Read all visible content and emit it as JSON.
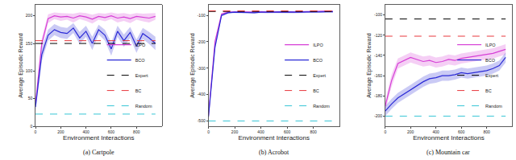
{
  "chart_data": [
    {
      "type": "line",
      "title": "(a) Cartpole",
      "x_label": "Environment Interactions",
      "y_label": "Average Episodic Reward",
      "x": [
        0,
        50,
        100,
        150,
        200,
        250,
        300,
        350,
        400,
        450,
        500,
        550,
        600,
        650,
        700,
        750,
        800,
        850,
        900,
        950
      ],
      "xlim": [
        0,
        1000
      ],
      "xticks": [
        0,
        200,
        400,
        600,
        800
      ],
      "ylim": [
        0,
        220
      ],
      "yticks": [
        0,
        50,
        100,
        150,
        200
      ],
      "grid": false,
      "legend": "right",
      "series": [
        {
          "name": "ILPO",
          "color": "#d63fd6",
          "line_style": "solid",
          "values": [
            40,
            150,
            195,
            200,
            198,
            199,
            196,
            200,
            198,
            194,
            199,
            197,
            200,
            196,
            198,
            195,
            199,
            197,
            196,
            199
          ],
          "error": [
            8,
            10,
            8,
            6,
            7,
            6,
            8,
            6,
            7,
            8,
            6,
            7,
            6,
            8,
            7,
            8,
            6,
            7,
            8,
            6
          ]
        },
        {
          "name": "BCO",
          "color": "#2b2bd6",
          "line_style": "solid",
          "values": [
            35,
            130,
            165,
            175,
            170,
            168,
            178,
            160,
            172,
            150,
            175,
            165,
            140,
            172,
            155,
            170,
            145,
            168,
            160,
            150
          ],
          "error": [
            8,
            12,
            10,
            10,
            10,
            10,
            9,
            11,
            10,
            12,
            9,
            10,
            12,
            10,
            11,
            10,
            12,
            10,
            11,
            12
          ]
        },
        {
          "name": "Expert",
          "color": "#000000",
          "line_style": "dashed",
          "values": [
            150,
            150,
            150,
            150,
            150,
            150,
            150,
            150,
            150,
            150,
            150,
            150,
            150,
            150,
            150,
            150,
            150,
            150,
            150,
            150
          ]
        },
        {
          "name": "BC",
          "color": "#e8383d",
          "line_style": "dashed",
          "values": [
            155,
            155,
            155,
            155,
            155,
            155,
            155,
            155,
            155,
            155,
            155,
            155,
            155,
            155,
            155,
            155,
            155,
            155,
            155,
            155
          ]
        },
        {
          "name": "Random",
          "color": "#37c5d6",
          "line_style": "dashed",
          "values": [
            22,
            22,
            22,
            22,
            22,
            22,
            22,
            22,
            22,
            22,
            22,
            22,
            22,
            22,
            22,
            22,
            22,
            22,
            22,
            22
          ]
        }
      ]
    },
    {
      "type": "line",
      "title": "(b) Acrobot",
      "x_label": "Environment Interactions",
      "y_label": "Average Episodic Reward",
      "x": [
        0,
        50,
        100,
        150,
        200,
        250,
        300,
        350,
        400,
        450,
        500,
        550,
        600,
        650,
        700,
        750,
        800,
        850,
        900,
        950
      ],
      "xlim": [
        0,
        1000
      ],
      "xticks": [
        0,
        200,
        400,
        600,
        800
      ],
      "ylim": [
        -520,
        -60
      ],
      "yticks": [
        -500,
        -400,
        -300,
        -200,
        -100
      ],
      "grid": false,
      "legend": "right",
      "series": [
        {
          "name": "ILPO",
          "color": "#d63fd6",
          "line_style": "solid",
          "values": [
            -480,
            -200,
            -95,
            -88,
            -87,
            -86,
            -87,
            -88,
            -86,
            -87,
            -86,
            -85,
            -86,
            -87,
            -86,
            -85,
            -86,
            -85,
            -84,
            -85
          ],
          "error": [
            4,
            10,
            4,
            3,
            3,
            3,
            3,
            3,
            3,
            3,
            3,
            3,
            3,
            3,
            3,
            3,
            3,
            3,
            3,
            3
          ]
        },
        {
          "name": "BCO",
          "color": "#2b2bd6",
          "line_style": "solid",
          "values": [
            -485,
            -220,
            -100,
            -90,
            -88,
            -89,
            -88,
            -90,
            -88,
            -89,
            -88,
            -87,
            -88,
            -89,
            -88,
            -87,
            -88,
            -87,
            -86,
            -86
          ],
          "error": [
            4,
            10,
            4,
            3,
            3,
            3,
            3,
            3,
            3,
            3,
            3,
            3,
            3,
            3,
            3,
            3,
            3,
            3,
            3,
            3
          ]
        },
        {
          "name": "Expert",
          "color": "#000000",
          "line_style": "dashed",
          "values": [
            -85,
            -85,
            -85,
            -85,
            -85,
            -85,
            -85,
            -85,
            -85,
            -85,
            -85,
            -85,
            -85,
            -85,
            -85,
            -85,
            -85,
            -85,
            -85,
            -85
          ]
        },
        {
          "name": "BC",
          "color": "#e8383d",
          "line_style": "dashed",
          "values": [
            -83,
            -83,
            -83,
            -83,
            -83,
            -83,
            -83,
            -83,
            -83,
            -83,
            -83,
            -83,
            -83,
            -83,
            -83,
            -83,
            -83,
            -83,
            -83,
            -83
          ]
        },
        {
          "name": "Random",
          "color": "#37c5d6",
          "line_style": "dashed",
          "values": [
            -500,
            -500,
            -500,
            -500,
            -500,
            -500,
            -500,
            -500,
            -500,
            -500,
            -500,
            -500,
            -500,
            -500,
            -500,
            -500,
            -500,
            -500,
            -500,
            -500
          ]
        }
      ]
    },
    {
      "type": "line",
      "title": "(c) Mountain car",
      "x_label": "Environment Interactions",
      "y_label": "Average Episodic Reward",
      "x": [
        0,
        50,
        100,
        150,
        200,
        250,
        300,
        350,
        400,
        450,
        500,
        550,
        600,
        650,
        700,
        750,
        800,
        850,
        900,
        950
      ],
      "xlim": [
        0,
        1000
      ],
      "xticks": [
        0,
        200,
        400,
        600,
        800
      ],
      "ylim": [
        -210,
        -90
      ],
      "yticks": [
        -200,
        -180,
        -160,
        -140,
        -120,
        -100
      ],
      "grid": false,
      "legend": "right",
      "series": [
        {
          "name": "ILPO",
          "color": "#d63fd6",
          "line_style": "solid",
          "values": [
            -190,
            -165,
            -148,
            -145,
            -142,
            -144,
            -146,
            -145,
            -147,
            -146,
            -144,
            -145,
            -143,
            -142,
            -141,
            -140,
            -139,
            -138,
            -136,
            -134
          ],
          "error": [
            5,
            6,
            5,
            5,
            5,
            5,
            5,
            5,
            5,
            5,
            5,
            5,
            5,
            5,
            5,
            5,
            5,
            5,
            5,
            5
          ]
        },
        {
          "name": "BCO",
          "color": "#2b2bd6",
          "line_style": "solid",
          "values": [
            -195,
            -188,
            -182,
            -178,
            -174,
            -170,
            -166,
            -163,
            -162,
            -160,
            -160,
            -159,
            -157,
            -158,
            -157,
            -156,
            -155,
            -153,
            -150,
            -142
          ],
          "error": [
            5,
            5,
            5,
            5,
            5,
            5,
            5,
            5,
            5,
            5,
            5,
            5,
            5,
            5,
            5,
            5,
            5,
            5,
            5,
            5
          ]
        },
        {
          "name": "Expert",
          "color": "#000000",
          "line_style": "dashed",
          "values": [
            -104,
            -104,
            -104,
            -104,
            -104,
            -104,
            -104,
            -104,
            -104,
            -104,
            -104,
            -104,
            -104,
            -104,
            -104,
            -104,
            -104,
            -104,
            -104,
            -104
          ]
        },
        {
          "name": "BC",
          "color": "#e8383d",
          "line_style": "dashed",
          "values": [
            -121,
            -121,
            -121,
            -121,
            -121,
            -121,
            -121,
            -121,
            -121,
            -121,
            -121,
            -121,
            -121,
            -121,
            -121,
            -121,
            -121,
            -121,
            -121,
            -121
          ]
        },
        {
          "name": "Random",
          "color": "#37c5d6",
          "line_style": "dashed",
          "values": [
            -200,
            -200,
            -200,
            -200,
            -200,
            -200,
            -200,
            -200,
            -200,
            -200,
            -200,
            -200,
            -200,
            -200,
            -200,
            -200,
            -200,
            -200,
            -200,
            -200
          ]
        }
      ]
    }
  ]
}
